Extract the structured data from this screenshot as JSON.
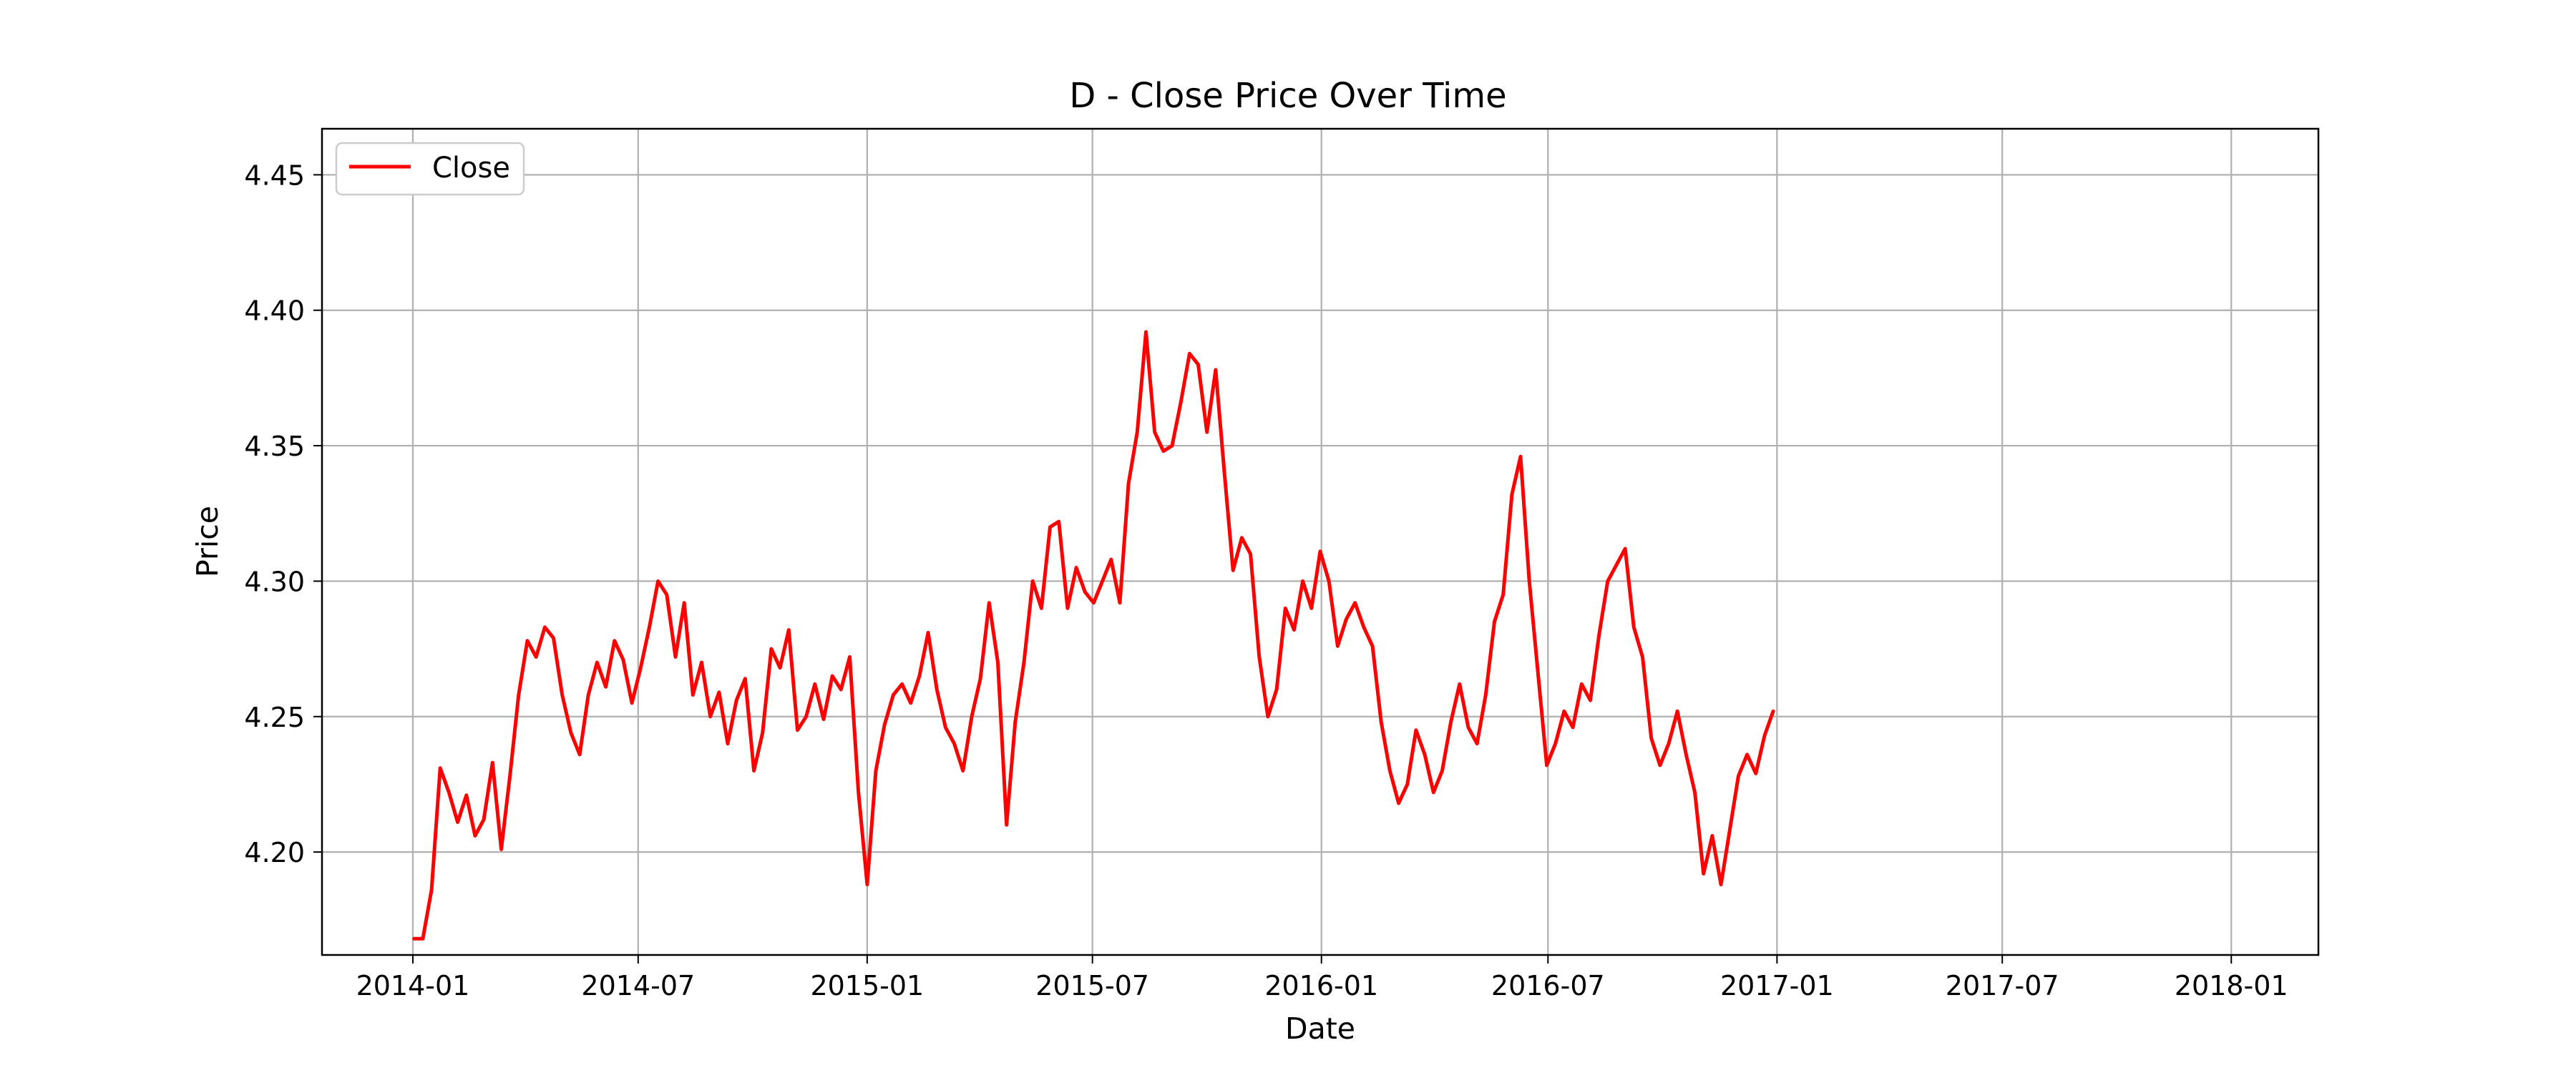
{
  "chart_data": {
    "type": "line",
    "title": "D - Close Price Over Time",
    "xlabel": "Date",
    "ylabel": "Price",
    "xlim": [
      "2013-10-20",
      "2018-03-12"
    ],
    "ylim": [
      4.162,
      4.467
    ],
    "x_ticks": [
      "2014-01",
      "2014-07",
      "2015-01",
      "2015-07",
      "2016-01",
      "2016-07",
      "2017-01",
      "2017-07",
      "2018-01"
    ],
    "y_ticks": [
      "4.20",
      "4.25",
      "4.30",
      "4.35",
      "4.40",
      "4.45"
    ],
    "grid": true,
    "legend_position": "top-left",
    "line_color": "#ff0000",
    "series": [
      {
        "name": "Close",
        "points": [
          [
            "2014-01-02",
            4.168
          ],
          [
            "2014-01-09",
            4.168
          ],
          [
            "2014-01-16",
            4.186
          ],
          [
            "2014-01-23",
            4.231
          ],
          [
            "2014-01-30",
            4.222
          ],
          [
            "2014-02-06",
            4.211
          ],
          [
            "2014-02-13",
            4.221
          ],
          [
            "2014-02-20",
            4.206
          ],
          [
            "2014-02-27",
            4.212
          ],
          [
            "2014-03-06",
            4.233
          ],
          [
            "2014-03-13",
            4.201
          ],
          [
            "2014-03-20",
            4.228
          ],
          [
            "2014-03-27",
            4.258
          ],
          [
            "2014-04-03",
            4.278
          ],
          [
            "2014-04-10",
            4.272
          ],
          [
            "2014-04-17",
            4.283
          ],
          [
            "2014-04-24",
            4.279
          ],
          [
            "2014-05-01",
            4.258
          ],
          [
            "2014-05-08",
            4.244
          ],
          [
            "2014-05-15",
            4.236
          ],
          [
            "2014-05-22",
            4.258
          ],
          [
            "2014-05-29",
            4.27
          ],
          [
            "2014-06-05",
            4.261
          ],
          [
            "2014-06-12",
            4.278
          ],
          [
            "2014-06-19",
            4.271
          ],
          [
            "2014-06-26",
            4.255
          ],
          [
            "2014-07-03",
            4.268
          ],
          [
            "2014-07-10",
            4.283
          ],
          [
            "2014-07-17",
            4.3
          ],
          [
            "2014-07-24",
            4.295
          ],
          [
            "2014-07-31",
            4.272
          ],
          [
            "2014-08-07",
            4.292
          ],
          [
            "2014-08-14",
            4.258
          ],
          [
            "2014-08-21",
            4.27
          ],
          [
            "2014-08-28",
            4.25
          ],
          [
            "2014-09-04",
            4.259
          ],
          [
            "2014-09-11",
            4.24
          ],
          [
            "2014-09-18",
            4.256
          ],
          [
            "2014-09-25",
            4.264
          ],
          [
            "2014-10-02",
            4.23
          ],
          [
            "2014-10-09",
            4.244
          ],
          [
            "2014-10-16",
            4.275
          ],
          [
            "2014-10-23",
            4.268
          ],
          [
            "2014-10-30",
            4.282
          ],
          [
            "2014-11-06",
            4.245
          ],
          [
            "2014-11-13",
            4.25
          ],
          [
            "2014-11-20",
            4.262
          ],
          [
            "2014-11-27",
            4.249
          ],
          [
            "2014-12-04",
            4.265
          ],
          [
            "2014-12-11",
            4.26
          ],
          [
            "2014-12-18",
            4.272
          ],
          [
            "2014-12-25",
            4.222
          ],
          [
            "2015-01-01",
            4.188
          ],
          [
            "2015-01-08",
            4.23
          ],
          [
            "2015-01-15",
            4.247
          ],
          [
            "2015-01-22",
            4.258
          ],
          [
            "2015-01-29",
            4.262
          ],
          [
            "2015-02-05",
            4.255
          ],
          [
            "2015-02-12",
            4.265
          ],
          [
            "2015-02-19",
            4.281
          ],
          [
            "2015-02-26",
            4.26
          ],
          [
            "2015-03-05",
            4.246
          ],
          [
            "2015-03-12",
            4.24
          ],
          [
            "2015-03-19",
            4.23
          ],
          [
            "2015-03-26",
            4.25
          ],
          [
            "2015-04-02",
            4.264
          ],
          [
            "2015-04-09",
            4.292
          ],
          [
            "2015-04-16",
            4.27
          ],
          [
            "2015-04-23",
            4.21
          ],
          [
            "2015-04-30",
            4.248
          ],
          [
            "2015-05-07",
            4.27
          ],
          [
            "2015-05-14",
            4.3
          ],
          [
            "2015-05-21",
            4.29
          ],
          [
            "2015-05-28",
            4.32
          ],
          [
            "2015-06-04",
            4.322
          ],
          [
            "2015-06-11",
            4.29
          ],
          [
            "2015-06-18",
            4.305
          ],
          [
            "2015-06-25",
            4.296
          ],
          [
            "2015-07-02",
            4.292
          ],
          [
            "2015-07-09",
            4.3
          ],
          [
            "2015-07-16",
            4.308
          ],
          [
            "2015-07-23",
            4.292
          ],
          [
            "2015-07-30",
            4.336
          ],
          [
            "2015-08-06",
            4.355
          ],
          [
            "2015-08-13",
            4.392
          ],
          [
            "2015-08-20",
            4.355
          ],
          [
            "2015-08-27",
            4.348
          ],
          [
            "2015-09-03",
            4.35
          ],
          [
            "2015-09-10",
            4.366
          ],
          [
            "2015-09-17",
            4.384
          ],
          [
            "2015-09-24",
            4.38
          ],
          [
            "2015-10-01",
            4.355
          ],
          [
            "2015-10-08",
            4.378
          ],
          [
            "2015-10-15",
            4.34
          ],
          [
            "2015-10-22",
            4.304
          ],
          [
            "2015-10-29",
            4.316
          ],
          [
            "2015-11-05",
            4.31
          ],
          [
            "2015-11-12",
            4.272
          ],
          [
            "2015-11-19",
            4.25
          ],
          [
            "2015-11-26",
            4.26
          ],
          [
            "2015-12-03",
            4.29
          ],
          [
            "2015-12-10",
            4.282
          ],
          [
            "2015-12-17",
            4.3
          ],
          [
            "2015-12-24",
            4.29
          ],
          [
            "2015-12-31",
            4.311
          ],
          [
            "2016-01-07",
            4.3
          ],
          [
            "2016-01-14",
            4.276
          ],
          [
            "2016-01-21",
            4.286
          ],
          [
            "2016-01-28",
            4.292
          ],
          [
            "2016-02-04",
            4.283
          ],
          [
            "2016-02-11",
            4.276
          ],
          [
            "2016-02-18",
            4.248
          ],
          [
            "2016-02-25",
            4.23
          ],
          [
            "2016-03-03",
            4.218
          ],
          [
            "2016-03-10",
            4.225
          ],
          [
            "2016-03-17",
            4.245
          ],
          [
            "2016-03-24",
            4.236
          ],
          [
            "2016-03-31",
            4.222
          ],
          [
            "2016-04-07",
            4.23
          ],
          [
            "2016-04-14",
            4.248
          ],
          [
            "2016-04-21",
            4.262
          ],
          [
            "2016-04-28",
            4.246
          ],
          [
            "2016-05-05",
            4.24
          ],
          [
            "2016-05-12",
            4.258
          ],
          [
            "2016-05-19",
            4.285
          ],
          [
            "2016-05-26",
            4.295
          ],
          [
            "2016-06-02",
            4.332
          ],
          [
            "2016-06-09",
            4.346
          ],
          [
            "2016-06-16",
            4.3
          ],
          [
            "2016-06-23",
            4.266
          ],
          [
            "2016-06-30",
            4.232
          ],
          [
            "2016-07-07",
            4.24
          ],
          [
            "2016-07-14",
            4.252
          ],
          [
            "2016-07-21",
            4.246
          ],
          [
            "2016-07-28",
            4.262
          ],
          [
            "2016-08-04",
            4.256
          ],
          [
            "2016-08-11",
            4.28
          ],
          [
            "2016-08-18",
            4.3
          ],
          [
            "2016-08-25",
            4.306
          ],
          [
            "2016-09-01",
            4.312
          ],
          [
            "2016-09-08",
            4.283
          ],
          [
            "2016-09-15",
            4.272
          ],
          [
            "2016-09-22",
            4.242
          ],
          [
            "2016-09-29",
            4.232
          ],
          [
            "2016-10-06",
            4.24
          ],
          [
            "2016-10-13",
            4.252
          ],
          [
            "2016-10-20",
            4.236
          ],
          [
            "2016-10-27",
            4.222
          ],
          [
            "2016-11-03",
            4.192
          ],
          [
            "2016-11-10",
            4.206
          ],
          [
            "2016-11-17",
            4.188
          ],
          [
            "2016-11-24",
            4.208
          ],
          [
            "2016-12-01",
            4.228
          ],
          [
            "2016-12-08",
            4.236
          ],
          [
            "2016-12-15",
            4.229
          ],
          [
            "2016-12-22",
            4.243
          ],
          [
            "2016-12-29",
            4.252
          ]
        ]
      }
    ]
  },
  "legend": {
    "label": "Close"
  }
}
